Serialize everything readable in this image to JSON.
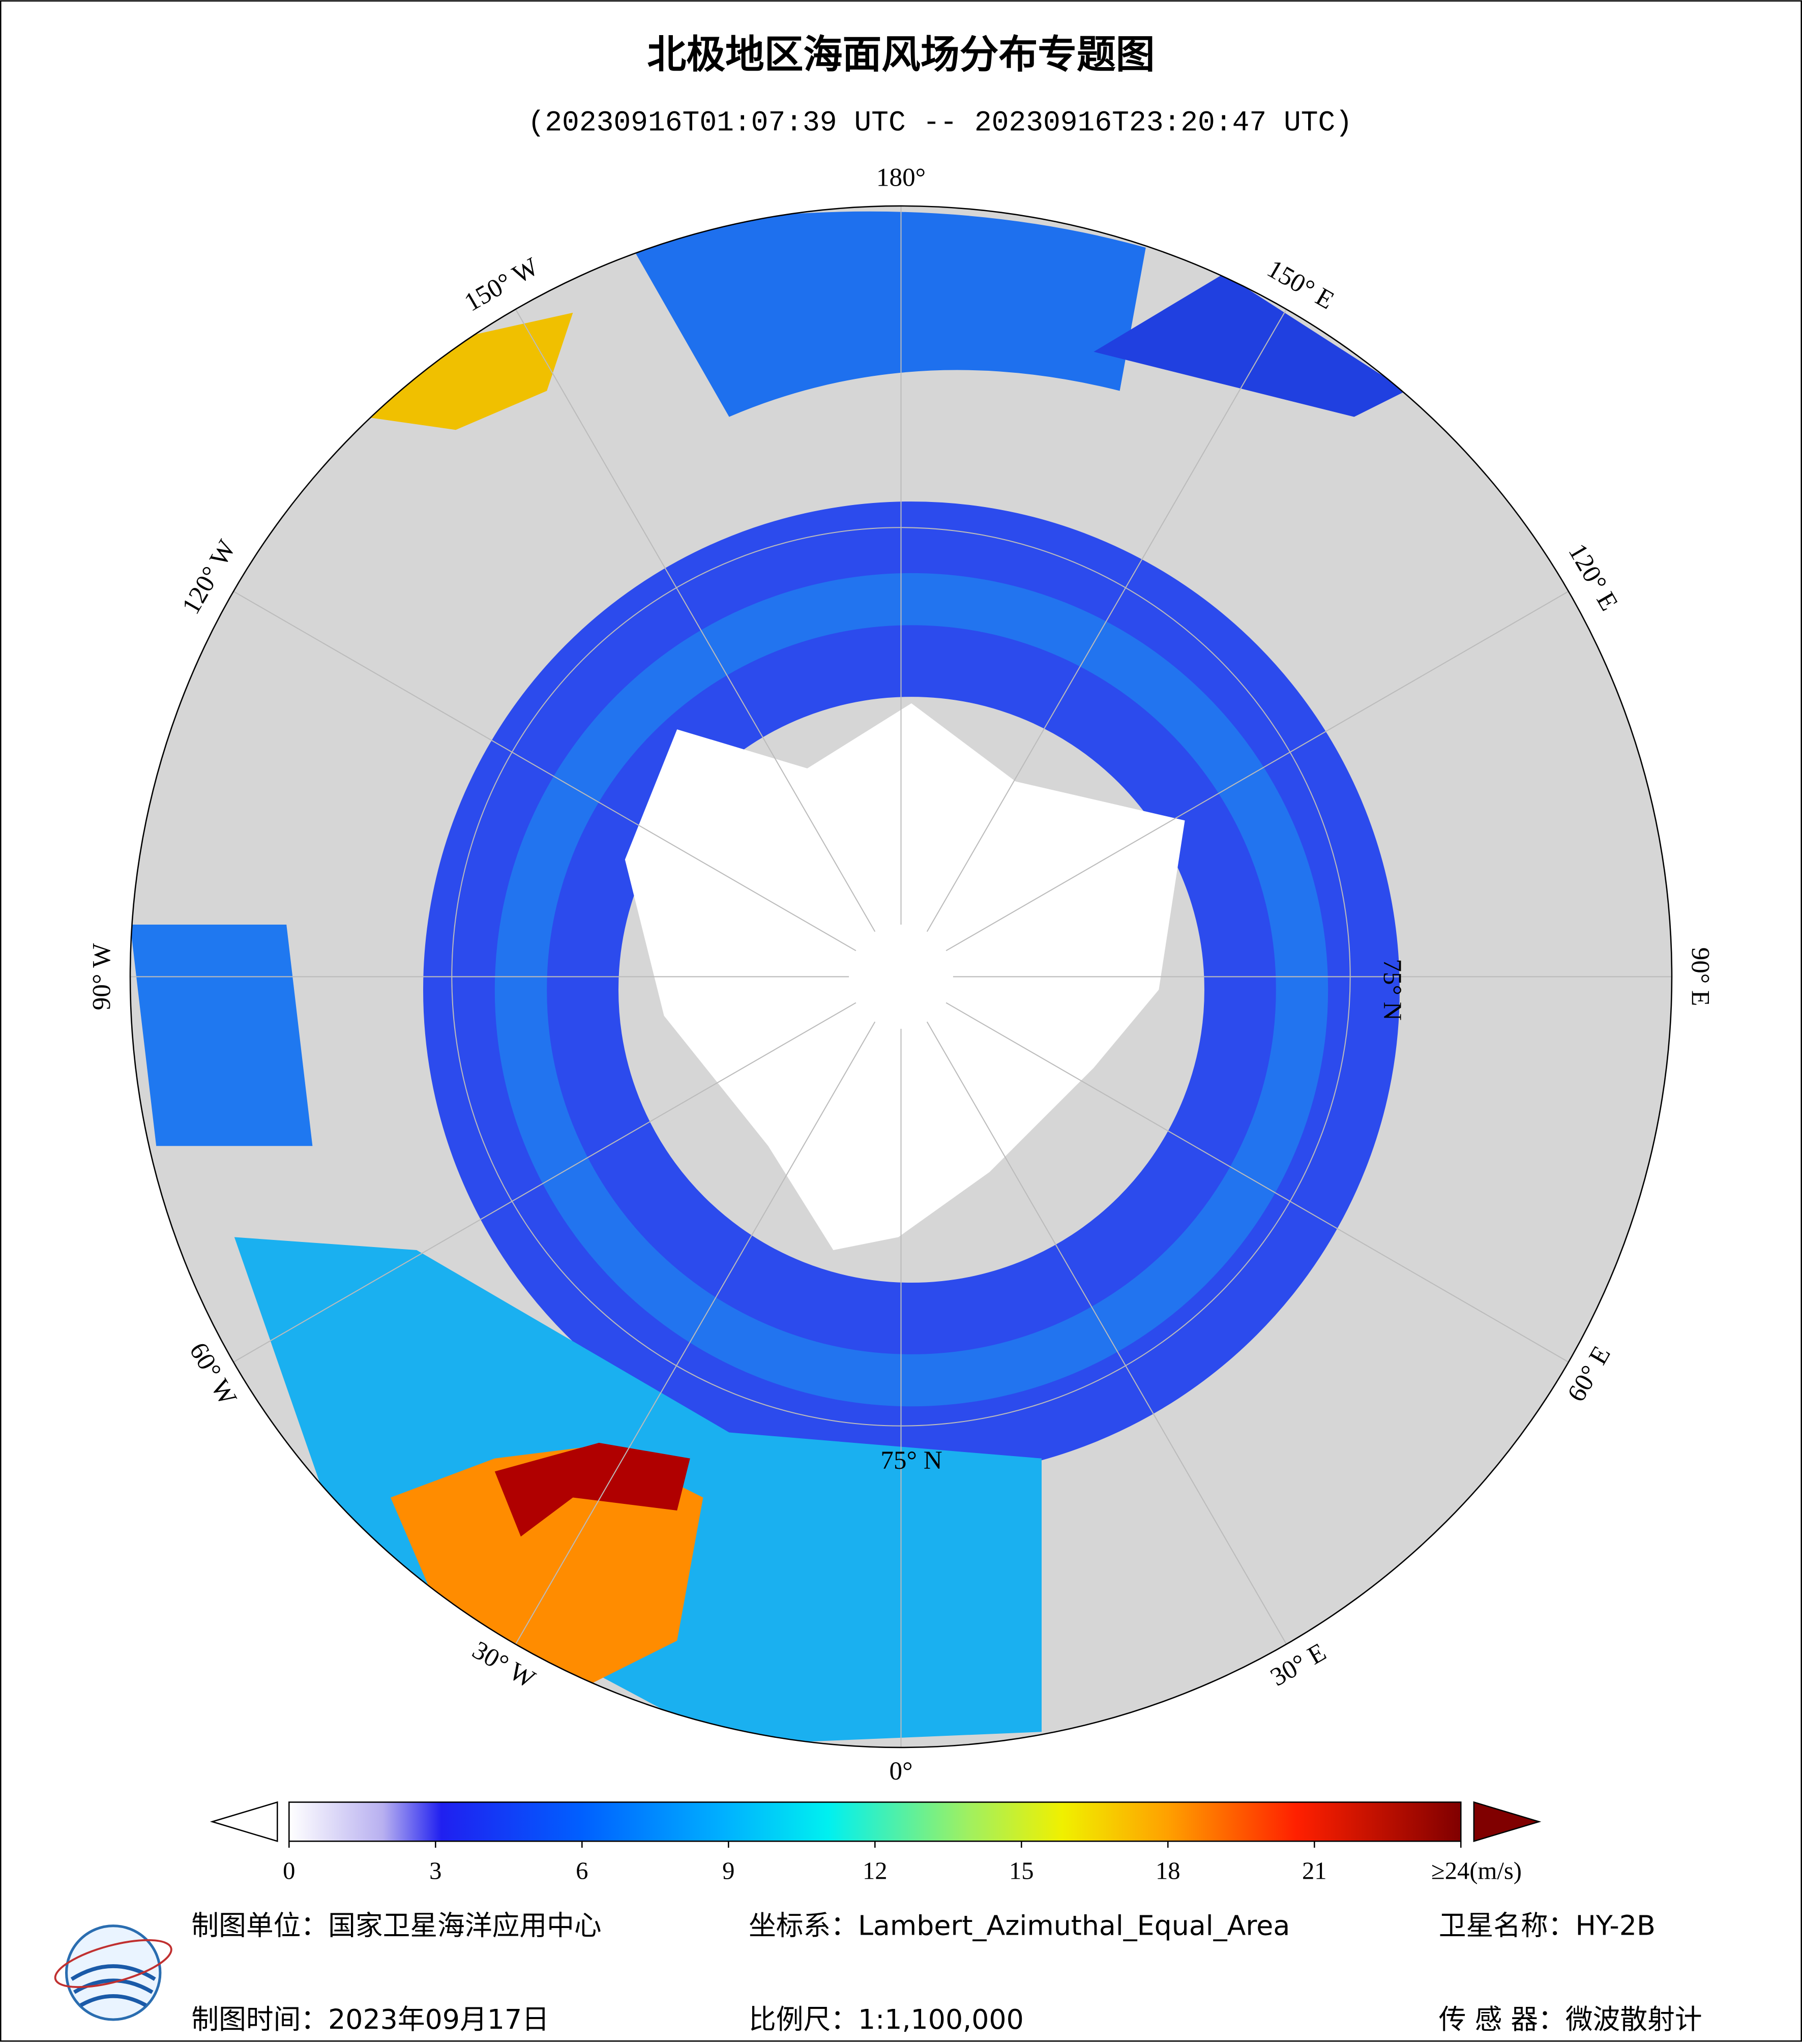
{
  "header": {
    "title": "北极地区海面风场分布专题图",
    "subtitle": "(20230916T01:07:39 UTC -- 20230916T23:20:47 UTC)"
  },
  "map": {
    "longitude_labels": [
      "180°",
      "150° E",
      "120° E",
      "90° E",
      "60° E",
      "30° E",
      "0°",
      "30° W",
      "60° W",
      "90° W",
      "120° W",
      "150° W"
    ],
    "latitude_labels": [
      "75° N",
      "75° N"
    ]
  },
  "colorbar": {
    "ticks": [
      0,
      3,
      6,
      9,
      12,
      15,
      18,
      21,
      {
        "value": 24,
        "label": "≥24(m/s)"
      }
    ],
    "range": [
      0,
      24
    ]
  },
  "footer": {
    "producer": "制图单位：国家卫星海洋应用中心",
    "projection": "坐标系：Lambert_Azimuthal_Equal_Area",
    "satellite": "卫星名称：HY-2B",
    "date": "制图时间：2023年09月17日",
    "scale": "比例尺：1:1,100,000",
    "sensor": "传 感 器：微波散射计"
  }
}
